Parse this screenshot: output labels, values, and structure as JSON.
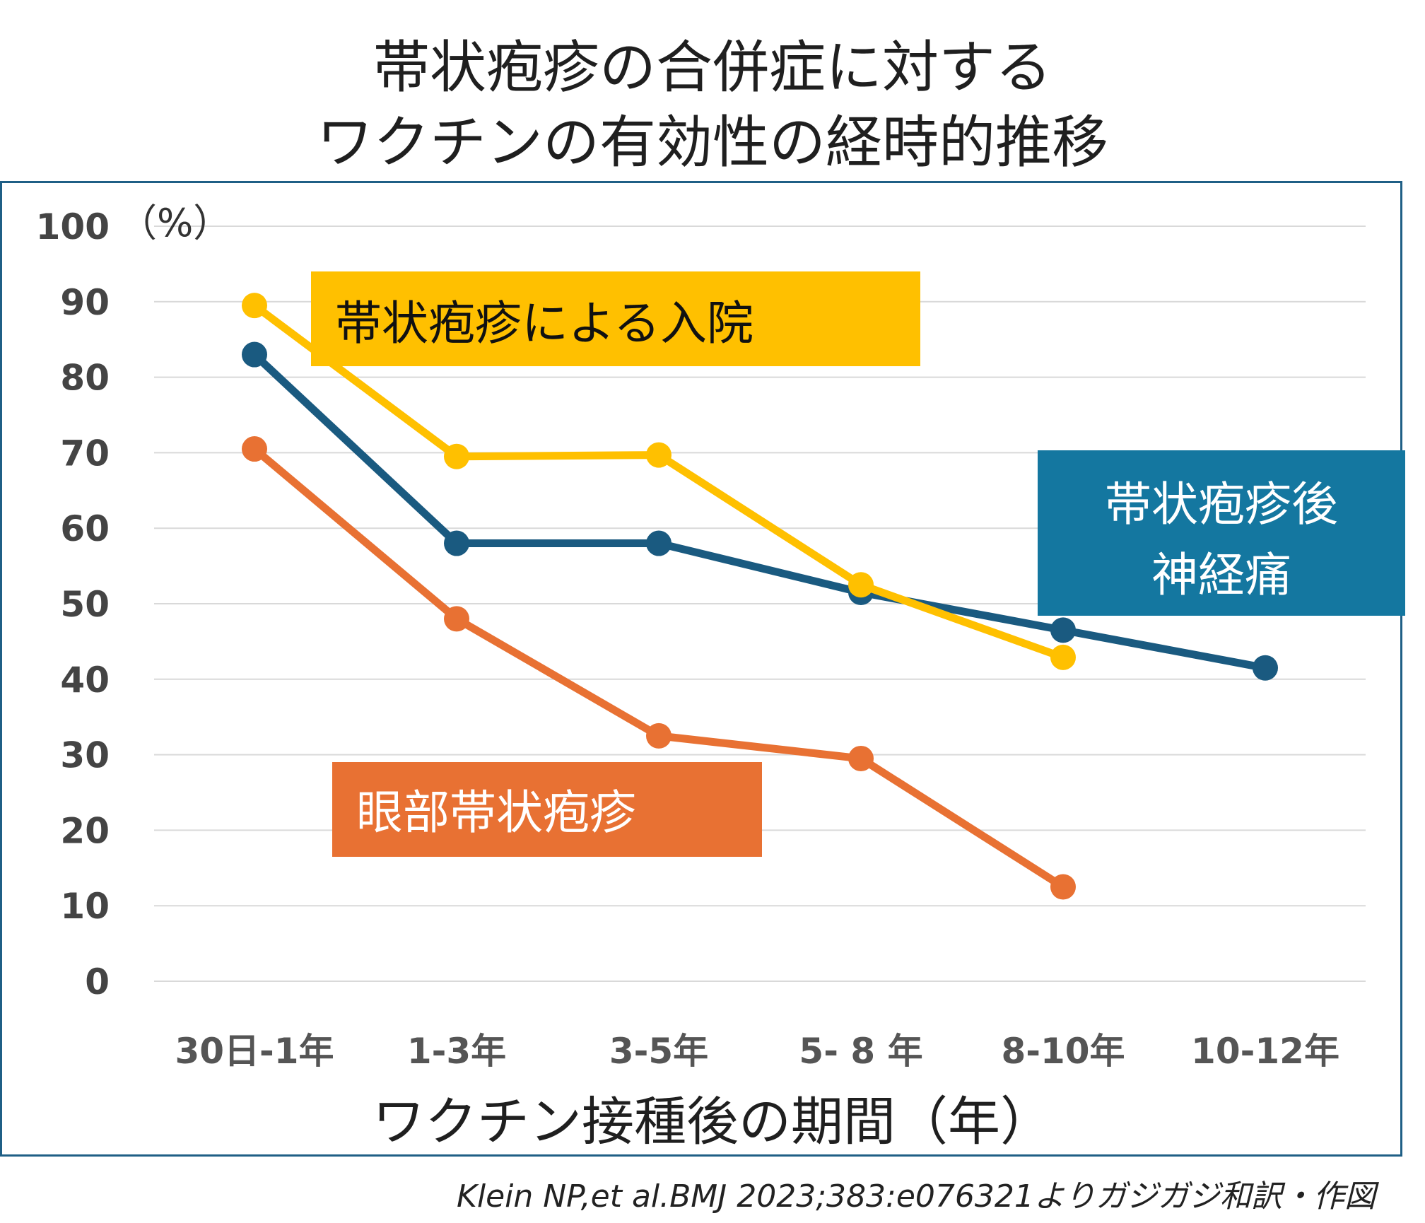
{
  "colors": {
    "zoster_hospitalization": "#FFC000",
    "postherpetic_neuralgia": "#1A5A80",
    "ophthalmic_zoster": "#E87133",
    "ophthalmic_label_bg": "#E87133",
    "phn_label_bg": "#1477A0",
    "hosp_label_bg": "#FFC000",
    "frame": "#1F5F86"
  },
  "title": {
    "line1": "帯状疱疹の合併症に対する",
    "line2": "ワクチンの有効性の経時的推移"
  },
  "caption": "Klein NP,et al.BMJ 2023;383:e076321よりガジガジ和訳・作図",
  "chart_data": {
    "type": "line",
    "title": "帯状疱疹の合併症に対する ワクチンの有効性の経時的推移",
    "xlabel": "ワクチン接種後の期間（年）",
    "ylabel": "",
    "y_unit": "（%）",
    "ylim": [
      0,
      100
    ],
    "yticks": [
      "0",
      "10",
      "20",
      "30",
      "40",
      "50",
      "60",
      "70",
      "80",
      "90",
      "100"
    ],
    "categories": [
      "30日-1年",
      "1-3年",
      "3-5年",
      "5- 8 年",
      "8-10年",
      "10-12年"
    ],
    "grid": true,
    "series": [
      {
        "name": "帯状疱疹による入院",
        "color_key": "zoster_hospitalization",
        "values": [
          89.5,
          69.5,
          69.7,
          52.5,
          42.9,
          null
        ]
      },
      {
        "name": "帯状疱疹後 神経痛",
        "color_key": "postherpetic_neuralgia",
        "values": [
          83.0,
          58.0,
          58.0,
          51.5,
          46.5,
          41.5
        ]
      },
      {
        "name": "眼部帯状疱疹",
        "color_key": "ophthalmic_zoster",
        "values": [
          70.5,
          48.0,
          32.5,
          29.5,
          12.5,
          null
        ]
      }
    ],
    "labels": {
      "hospitalization": "帯状疱疹による入院",
      "phn_line1": "帯状疱疹後",
      "phn_line2": "神経痛",
      "ophthalmic": "眼部帯状疱疹"
    }
  }
}
